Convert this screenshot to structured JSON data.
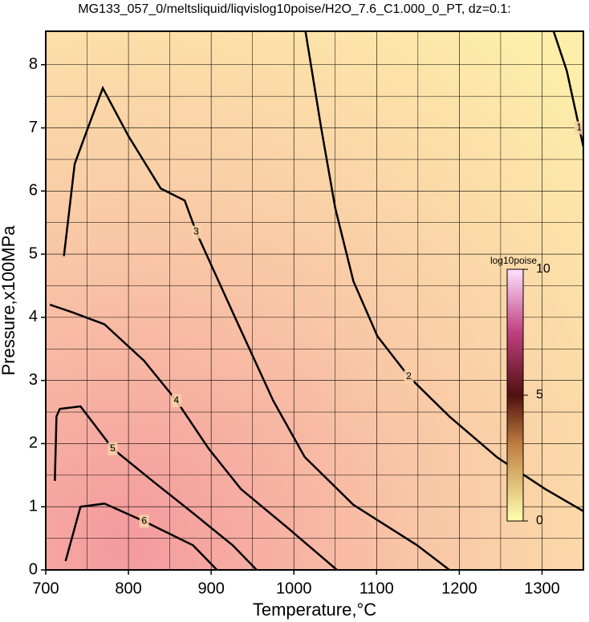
{
  "chart_data": {
    "type": "contour",
    "title": "MG133_057_0/meltsliquid/liqvislog10poise/H2O_7.6_C1.000_0_PT, dz=0.1:",
    "x_label": "Temperature,°C",
    "y_label": "Pressure,x100MPa",
    "xlim": [
      700,
      1350
    ],
    "ylim": [
      0,
      8.53
    ],
    "xticks": [
      700,
      800,
      900,
      1000,
      1100,
      1200,
      1300
    ],
    "yticks": [
      0,
      1,
      2,
      3,
      4,
      5,
      6,
      7,
      8
    ],
    "xminorticks": [
      750,
      850,
      950,
      1050,
      1150,
      1250
    ],
    "yminorticks": [
      0.5,
      1.5,
      2.5,
      3.5,
      4.5,
      5.5,
      6.5,
      7.5
    ],
    "grid": true,
    "contours": [
      {
        "level": 1,
        "x": [
          1314,
          1330,
          1345,
          1350
        ],
        "y": [
          8.53,
          7.9,
          7.0,
          6.7
        ]
      },
      {
        "level": 2,
        "x": [
          1014,
          1033,
          1050,
          1072,
          1101,
          1139,
          1188,
          1246,
          1304,
          1350
        ],
        "y": [
          8.53,
          7.0,
          5.73,
          4.57,
          3.7,
          3.06,
          2.43,
          1.78,
          1.28,
          0.93
        ]
      },
      {
        "level": 3,
        "x": [
          722,
          735,
          751,
          769,
          800,
          839,
          868,
          882,
          926,
          975,
          1013,
          1072,
          1149,
          1188
        ],
        "y": [
          4.97,
          6.43,
          7.0,
          7.63,
          6.87,
          6.04,
          5.85,
          5.35,
          4.08,
          2.68,
          1.79,
          1.03,
          0.39,
          0
        ]
      },
      {
        "level": 4,
        "x": [
          705,
          732,
          771,
          819,
          858,
          897,
          936,
          994,
          1052
        ],
        "y": [
          4.2,
          4.08,
          3.89,
          3.31,
          2.68,
          1.92,
          1.28,
          0.65,
          0
        ]
      },
      {
        "level": 5,
        "x": [
          711,
          713,
          717,
          742,
          781,
          829,
          878,
          926,
          955
        ],
        "y": [
          1.41,
          2.43,
          2.55,
          2.59,
          1.92,
          1.41,
          0.9,
          0.39,
          0
        ]
      },
      {
        "level": 6,
        "x": [
          724,
          742,
          771,
          819,
          878,
          907
        ],
        "y": [
          0.14,
          1.0,
          1.05,
          0.77,
          0.39,
          0
        ]
      }
    ],
    "colorbar": {
      "label": "log10poise",
      "lim": [
        0,
        10
      ],
      "ticks": [
        0,
        5,
        10
      ]
    }
  }
}
